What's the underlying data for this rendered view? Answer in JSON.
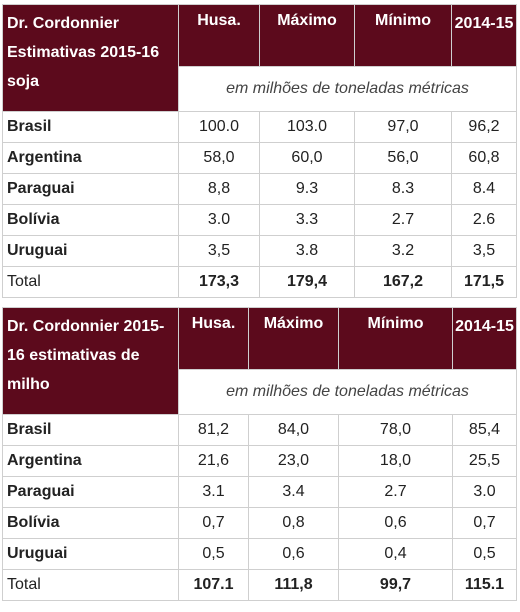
{
  "table1": {
    "title": "Dr. Cordonnier Estimativas 2015-16 soja",
    "col_husa": "Husa.",
    "col_max": "Máximo",
    "col_min": "Mínimo",
    "col_prev": "2014-15",
    "units": "em milhões de toneladas métricas",
    "rows": [
      {
        "label": "Brasil",
        "husa": "100.0",
        "max": "103.0",
        "min": "97,0",
        "prev": "96,2"
      },
      {
        "label": "Argentina",
        "husa": "58,0",
        "max": "60,0",
        "min": "56,0",
        "prev": "60,8"
      },
      {
        "label": "Paraguai",
        "husa": "8,8",
        "max": "9.3",
        "min": "8.3",
        "prev": "8.4"
      },
      {
        "label": "Bolívia",
        "husa": "3.0",
        "max": "3.3",
        "min": "2.7",
        "prev": "2.6"
      },
      {
        "label": "Uruguai",
        "husa": "3,5",
        "max": "3.8",
        "min": "3.2",
        "prev": "3,5"
      }
    ],
    "total": {
      "label": "Total",
      "husa": "173,3",
      "max": "179,4",
      "min": "167,2",
      "prev": "171,5"
    }
  },
  "table2": {
    "title": "Dr. Cordonnier 2015-16 estimativas de milho",
    "col_husa": "Husa.",
    "col_max": "Máximo",
    "col_min": "Mínimo",
    "col_prev": "2014-15",
    "units": "em milhões de toneladas métricas",
    "rows": [
      {
        "label": "Brasil",
        "husa": "81,2",
        "max": "84,0",
        "min": "78,0",
        "prev": "85,4"
      },
      {
        "label": "Argentina",
        "husa": "21,6",
        "max": "23,0",
        "min": "18,0",
        "prev": "25,5"
      },
      {
        "label": "Paraguai",
        "husa": "3.1",
        "max": "3.4",
        "min": "2.7",
        "prev": "3.0"
      },
      {
        "label": "Bolívia",
        "husa": "0,7",
        "max": "0,8",
        "min": "0,6",
        "prev": "0,7"
      },
      {
        "label": "Uruguai",
        "husa": "0,5",
        "max": "0,6",
        "min": "0,4",
        "prev": "0,5"
      }
    ],
    "total": {
      "label": "Total",
      "husa": "107.1",
      "max": "111,8",
      "min": "99,7",
      "prev": "115.1"
    }
  }
}
